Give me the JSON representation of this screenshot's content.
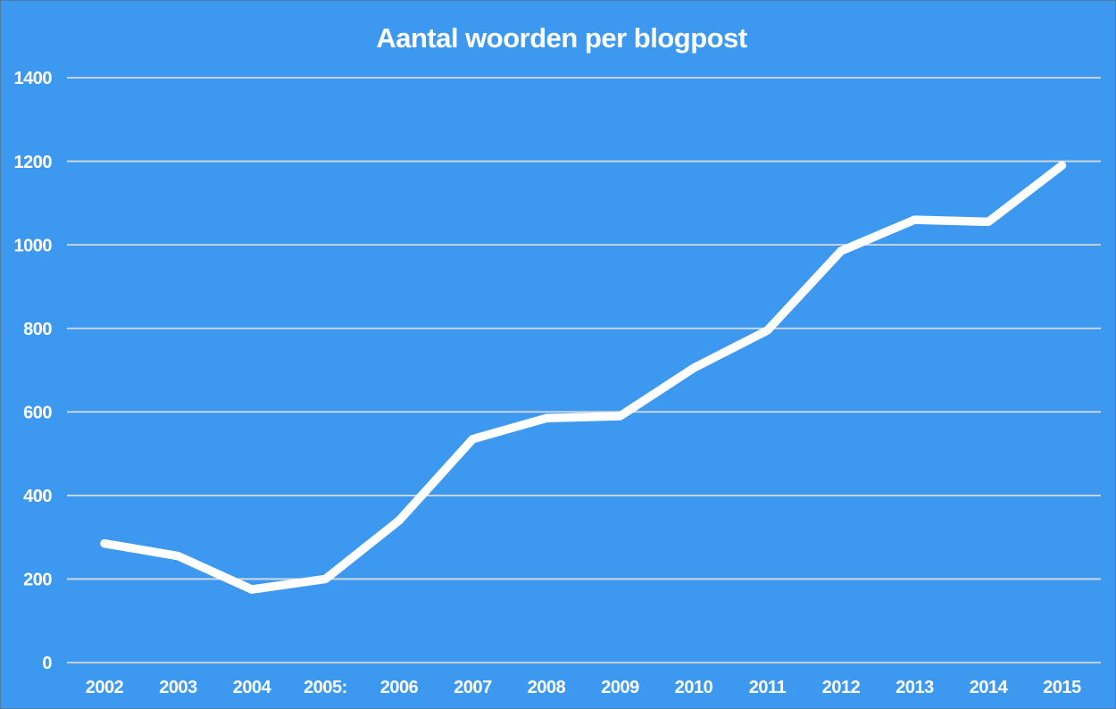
{
  "chart_data": {
    "type": "line",
    "title": "Aantal woorden per blogpost",
    "categories": [
      "2002",
      "2003",
      "2004",
      "2005:",
      "2006",
      "2007",
      "2008",
      "2009",
      "2010",
      "2011",
      "2012",
      "2013",
      "2014",
      "2015"
    ],
    "values": [
      285,
      255,
      175,
      200,
      340,
      535,
      585,
      590,
      705,
      795,
      985,
      1060,
      1055,
      1190
    ],
    "xlabel": "",
    "ylabel": "",
    "ylim": [
      0,
      1400
    ],
    "yticks": [
      0,
      200,
      400,
      600,
      800,
      1000,
      1200,
      1400
    ],
    "grid": true,
    "legend_position": "none",
    "colors": {
      "background": "#3d99f0",
      "line": "#ffffff",
      "text": "#ffffff",
      "gridline": "#d6dade"
    }
  }
}
